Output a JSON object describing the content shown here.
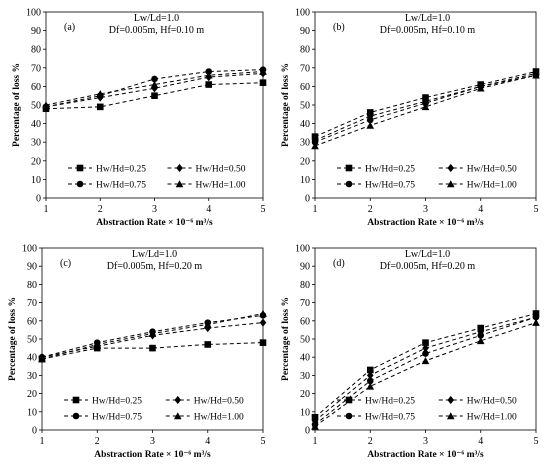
{
  "chart_data": [
    {
      "type": "line",
      "panel_label": "(a)",
      "annotation_lines": [
        "Lw/Ld=1.0",
        "Df=0.005m, Hf=0.10 m"
      ],
      "xlabel": "Abstraction Rate × 10⁻⁶ m³/s",
      "ylabel": "Percentage of loss %",
      "xlim": [
        1,
        5
      ],
      "ylim": [
        0,
        100
      ],
      "x_ticks": [
        "1",
        "2",
        "3",
        "4",
        "5"
      ],
      "y_ticks": [
        "0",
        "10",
        "20",
        "30",
        "40",
        "50",
        "60",
        "70",
        "80",
        "90",
        "100"
      ],
      "x": [
        1,
        2,
        3,
        4,
        5
      ],
      "series": [
        {
          "name": "Hw/Hd=0.25",
          "marker": "square",
          "values": [
            48,
            49,
            55,
            61,
            62
          ]
        },
        {
          "name": "Hw/Hd=0.50",
          "marker": "diamond",
          "values": [
            49,
            54,
            59,
            65,
            67
          ]
        },
        {
          "name": "Hw/Hd=0.75",
          "marker": "circle",
          "values": [
            49,
            55,
            64,
            68,
            69
          ]
        },
        {
          "name": "Hw/Hd=1.00",
          "marker": "triangle",
          "values": [
            50,
            56,
            61,
            66,
            68
          ]
        }
      ],
      "grid": false,
      "legend_position": "bottom"
    },
    {
      "type": "line",
      "panel_label": "(b)",
      "annotation_lines": [
        "Lw/Ld=1.0",
        "Df=0.005m, Hf=0.10 m"
      ],
      "xlabel": "Abstraction Rate × 10⁻⁶ m³/s",
      "ylabel": "Percentage of loss %",
      "xlim": [
        1,
        5
      ],
      "ylim": [
        0,
        100
      ],
      "x_ticks": [
        "1",
        "2",
        "3",
        "4",
        "5"
      ],
      "y_ticks": [
        "0",
        "10",
        "20",
        "30",
        "40",
        "50",
        "60",
        "70",
        "80",
        "90",
        "100"
      ],
      "x": [
        1,
        2,
        3,
        4,
        5
      ],
      "series": [
        {
          "name": "Hw/Hd=0.25",
          "marker": "square",
          "values": [
            33,
            46,
            54,
            61,
            68
          ]
        },
        {
          "name": "Hw/Hd=0.50",
          "marker": "diamond",
          "values": [
            31,
            44,
            52,
            60,
            67
          ]
        },
        {
          "name": "Hw/Hd=0.75",
          "marker": "circle",
          "values": [
            30,
            42,
            51,
            60,
            66
          ]
        },
        {
          "name": "Hw/Hd=1.00",
          "marker": "triangle",
          "values": [
            28,
            39,
            49,
            59,
            66
          ]
        }
      ],
      "grid": false,
      "legend_position": "bottom"
    },
    {
      "type": "line",
      "panel_label": "(c)",
      "annotation_lines": [
        "Lw/Ld=1.0",
        "Df=0.005m, Hf=0.20 m"
      ],
      "xlabel": "Abstraction Rate × 10⁻⁶ m³/s",
      "ylabel": "Percentage of loss %",
      "xlim": [
        1,
        5
      ],
      "ylim": [
        0,
        100
      ],
      "x_ticks": [
        "1",
        "2",
        "3",
        "4",
        "5"
      ],
      "y_ticks": [
        "0",
        "10",
        "20",
        "30",
        "40",
        "50",
        "60",
        "70",
        "80",
        "90",
        "100"
      ],
      "x": [
        1,
        2,
        3,
        4,
        5
      ],
      "series": [
        {
          "name": "Hw/Hd=0.25",
          "marker": "square",
          "values": [
            39,
            45,
            45,
            47,
            48
          ]
        },
        {
          "name": "Hw/Hd=0.50",
          "marker": "diamond",
          "values": [
            40,
            46,
            52,
            56,
            59
          ]
        },
        {
          "name": "Hw/Hd=0.75",
          "marker": "circle",
          "values": [
            40,
            48,
            54,
            59,
            63
          ]
        },
        {
          "name": "Hw/Hd=1.00",
          "marker": "triangle",
          "values": [
            39,
            47,
            53,
            58,
            64
          ]
        }
      ],
      "grid": false,
      "legend_position": "bottom"
    },
    {
      "type": "line",
      "panel_label": "(d)",
      "annotation_lines": [
        "Lw/Ld=1.0",
        "Df=0.005m, Hf=0.20 m"
      ],
      "xlabel": "Abstraction Rate × 10⁻⁶ m³/s",
      "ylabel": "Percentage of loss %",
      "xlim": [
        1,
        5
      ],
      "ylim": [
        0,
        100
      ],
      "x_ticks": [
        "1",
        "2",
        "3",
        "4",
        "5"
      ],
      "y_ticks": [
        "0",
        "10",
        "20",
        "30",
        "40",
        "50",
        "60",
        "70",
        "80",
        "90",
        "100"
      ],
      "x": [
        1,
        2,
        3,
        4,
        5
      ],
      "series": [
        {
          "name": "Hw/Hd=0.25",
          "marker": "square",
          "values": [
            7,
            33,
            48,
            56,
            64
          ]
        },
        {
          "name": "Hw/Hd=0.50",
          "marker": "diamond",
          "values": [
            5,
            30,
            45,
            54,
            62
          ]
        },
        {
          "name": "Hw/Hd=0.75",
          "marker": "circle",
          "values": [
            3,
            27,
            42,
            52,
            62
          ]
        },
        {
          "name": "Hw/Hd=1.00",
          "marker": "triangle",
          "values": [
            2,
            24,
            38,
            49,
            59
          ]
        }
      ],
      "grid": false,
      "legend_position": "bottom"
    }
  ]
}
